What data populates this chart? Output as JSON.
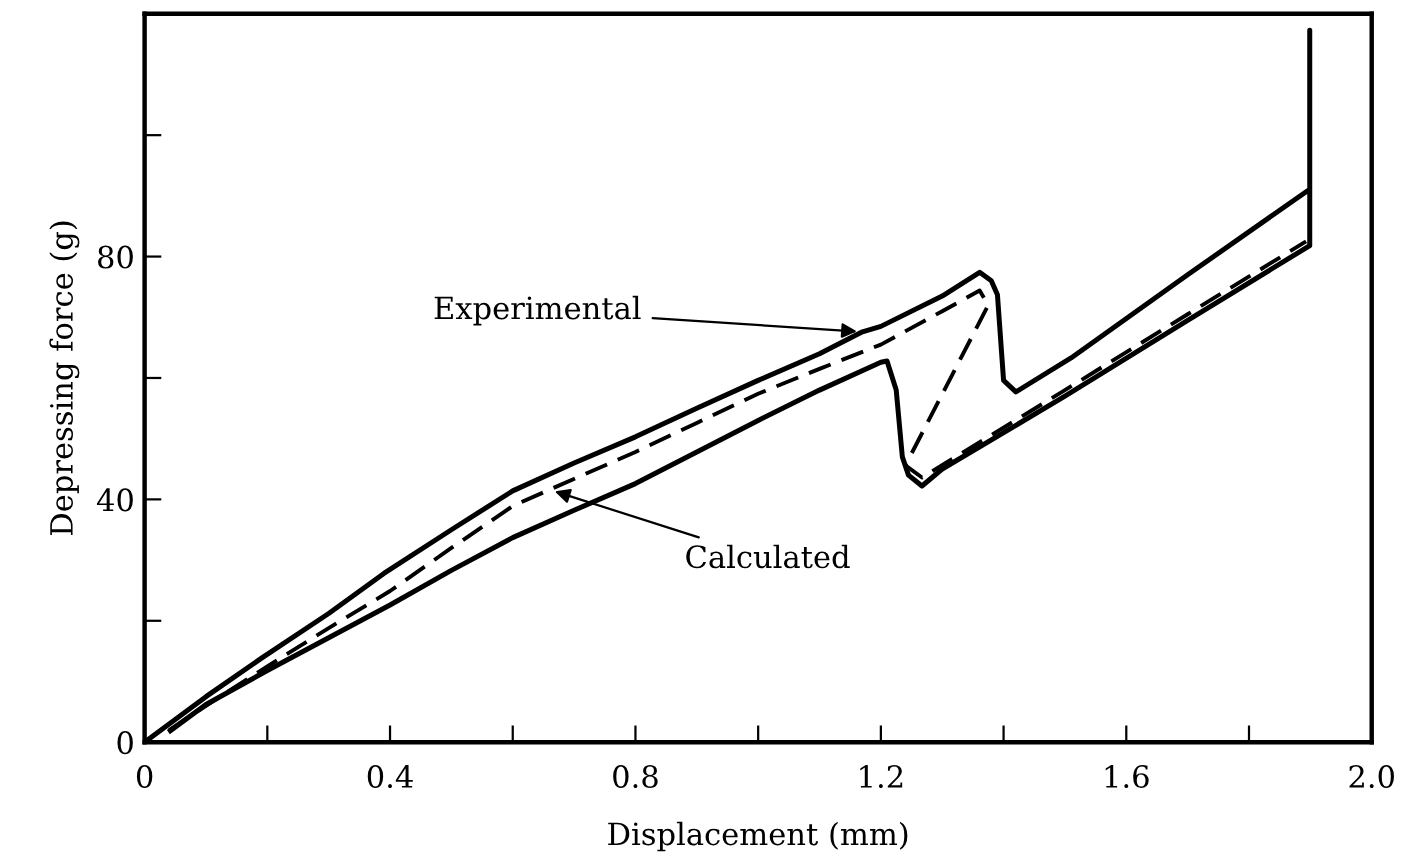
{
  "chart_data": {
    "type": "line",
    "xlabel": "Displacement (mm)",
    "ylabel": "Depressing force (g)",
    "series": [
      {
        "color": "#000000",
        "line_style": "solid",
        "x": [
          0,
          0.1,
          0.19,
          0.3,
          0.39,
          0.5,
          0.6,
          0.7,
          0.8,
          0.9,
          1.0,
          1.1,
          1.17,
          1.2,
          1.3,
          1.361,
          1.38,
          1.39,
          1.4,
          1.42,
          1.51,
          1.7,
          1.899,
          1.899,
          1.899,
          1.7,
          1.5,
          1.3,
          1.267,
          1.245,
          1.235,
          1.225,
          1.21,
          1.2,
          1.1,
          1.0,
          0.9,
          0.8,
          0.7,
          0.6,
          0.5,
          0.4,
          0.3,
          0.2,
          0.1,
          0.042
        ],
        "values": [
          0,
          7.5,
          13.8,
          21.2,
          27.8,
          35,
          41.4,
          46,
          50.3,
          55,
          59.6,
          64,
          67.6,
          68.5,
          73.5,
          77.4,
          76,
          73.7,
          59.6,
          57.7,
          63.3,
          77,
          91.1,
          117.3,
          81.8,
          69.5,
          57,
          45,
          42.2,
          44,
          47,
          58,
          62.8,
          62.6,
          58,
          53,
          47.8,
          42.6,
          38.2,
          33.7,
          28.3,
          22.6,
          17.2,
          11.8,
          6.2,
          1.9
        ]
      },
      {
        "color": "#000000",
        "line_style": "dashed",
        "x": [
          0.04,
          0.1,
          0.2,
          0.3,
          0.4,
          0.5,
          0.6,
          0.66,
          0.8,
          0.9,
          1.0,
          1.1,
          1.2,
          1.3,
          1.361,
          1.375,
          1.24,
          1.267,
          1.5,
          1.7,
          1.893
        ],
        "values": [
          2,
          6,
          12.5,
          18.8,
          24.9,
          32,
          38.9,
          41.6,
          47.8,
          52.6,
          57.4,
          61.5,
          65.5,
          71,
          74.4,
          72,
          45.6,
          43.6,
          58,
          70.5,
          82.5
        ]
      }
    ],
    "annotations": [
      {
        "text": "Experimental",
        "x": 1.17,
        "y": 67.6
      },
      {
        "text": "Calculated",
        "x": 0.66,
        "y": 41.6
      }
    ],
    "xlim": [
      0,
      2.0
    ],
    "ylim": [
      0,
      120
    ],
    "xticks": [
      0,
      {
        "value": 0.2,
        "label": null
      },
      0.4,
      {
        "value": 0.6,
        "label": null
      },
      0.8,
      {
        "value": 1.0,
        "label": null
      },
      1.2,
      {
        "value": 1.4,
        "label": null
      },
      1.6,
      {
        "value": 1.8,
        "label": null
      },
      {
        "value": 2.0,
        "label": "2.0"
      }
    ],
    "yticks": [
      0,
      {
        "value": 20,
        "label": null
      },
      40,
      {
        "value": 60,
        "label": null
      },
      80,
      {
        "value": 100,
        "label": null
      }
    ],
    "grid": false
  }
}
